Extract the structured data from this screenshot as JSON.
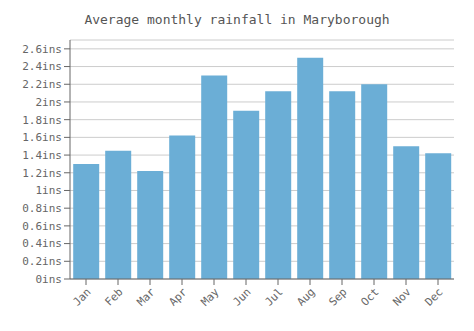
{
  "chart_data": {
    "type": "bar",
    "title": "Average monthly rainfall in Maryborough",
    "categories": [
      "Jan",
      "Feb",
      "Mar",
      "Apr",
      "May",
      "Jun",
      "Jul",
      "Aug",
      "Sep",
      "Oct",
      "Nov",
      "Dec"
    ],
    "values": [
      1.3,
      1.45,
      1.22,
      1.62,
      2.3,
      1.9,
      2.12,
      2.5,
      2.12,
      2.2,
      1.5,
      1.42
    ],
    "color": "#6baed6",
    "ylim": [
      0,
      2.7
    ],
    "yticks": [
      {
        "value": 0,
        "label": "0ins"
      },
      {
        "value": 0.2,
        "label": "0.2ins"
      },
      {
        "value": 0.4,
        "label": "0.4ins"
      },
      {
        "value": 0.6,
        "label": "0.6ins"
      },
      {
        "value": 0.8,
        "label": "0.8ins"
      },
      {
        "value": 1.0,
        "label": "1ins"
      },
      {
        "value": 1.2,
        "label": "1.2ins"
      },
      {
        "value": 1.4,
        "label": "1.4ins"
      },
      {
        "value": 1.6,
        "label": "1.6ins"
      },
      {
        "value": 1.8,
        "label": "1.8ins"
      },
      {
        "value": 2.0,
        "label": "2ins"
      },
      {
        "value": 2.2,
        "label": "2.2ins"
      },
      {
        "value": 2.4,
        "label": "2.4ins"
      },
      {
        "value": 2.6,
        "label": "2.6ins"
      }
    ],
    "grid": true
  }
}
